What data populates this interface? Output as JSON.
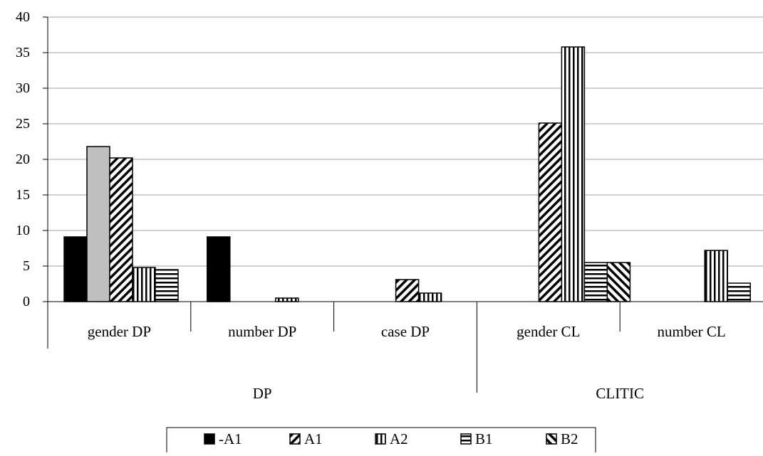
{
  "chart_data": {
    "type": "bar",
    "title": "",
    "xlabel": "",
    "ylabel": "",
    "ylim": [
      0,
      40
    ],
    "yticks": [
      0,
      5,
      10,
      15,
      20,
      25,
      30,
      35,
      40
    ],
    "grid": true,
    "legend_position": "bottom",
    "categories": [
      "gender DP",
      "number DP",
      "case DP",
      "gender CL",
      "number CL"
    ],
    "groups": [
      {
        "label": "DP",
        "categories": [
          "gender DP",
          "number DP",
          "case DP"
        ]
      },
      {
        "label": "CLITIC",
        "categories": [
          "gender CL",
          "number CL"
        ]
      }
    ],
    "series": [
      {
        "name": "-A1",
        "pattern": "solid-black",
        "values": [
          9.1,
          9.1,
          null,
          null,
          null
        ]
      },
      {
        "name": "",
        "pattern": "solid-gray",
        "values": [
          21.8,
          null,
          null,
          null,
          null
        ]
      },
      {
        "name": "A1",
        "pattern": "diagonal",
        "values": [
          20.2,
          null,
          3.1,
          25.1,
          null
        ]
      },
      {
        "name": "A2",
        "pattern": "vertical",
        "values": [
          4.8,
          0.5,
          1.2,
          35.8,
          7.2
        ]
      },
      {
        "name": "B1",
        "pattern": "horizontal",
        "values": [
          4.5,
          null,
          null,
          5.5,
          2.6
        ]
      },
      {
        "name": "B2",
        "pattern": "back-diagonal",
        "values": [
          null,
          null,
          null,
          5.5,
          null
        ]
      }
    ],
    "legend": [
      "-A1",
      "A1",
      "A2",
      "B1",
      "B2"
    ],
    "colors": {
      "axis": "#000000",
      "grid": "#a0a0a0",
      "black": "#000000",
      "gray": "#c0c0c0"
    }
  }
}
